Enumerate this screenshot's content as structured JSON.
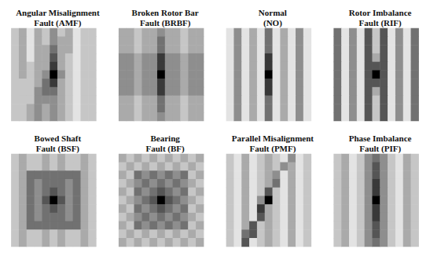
{
  "chart_data": [
    {
      "type": "heatmap",
      "title": "Angular Misalignment Fault (AMF)",
      "cell_range": [
        0,
        9
      ],
      "tick_labels": false,
      "cells": [
        [
          2,
          3,
          1,
          3,
          2,
          4,
          2,
          3,
          1,
          2,
          2
        ],
        [
          2,
          3,
          1,
          3,
          2,
          4,
          3,
          3,
          1,
          2,
          2
        ],
        [
          2,
          3,
          1,
          3,
          3,
          5,
          3,
          3,
          1,
          2,
          2
        ],
        [
          2,
          3,
          1,
          3,
          3,
          6,
          3,
          2,
          1,
          2,
          2
        ],
        [
          2,
          3,
          2,
          3,
          3,
          7,
          3,
          2,
          1,
          2,
          2
        ],
        [
          2,
          3,
          2,
          3,
          4,
          9,
          4,
          2,
          1,
          2,
          2
        ],
        [
          2,
          2,
          2,
          3,
          5,
          7,
          3,
          2,
          1,
          2,
          2
        ],
        [
          2,
          2,
          2,
          4,
          5,
          5,
          3,
          2,
          1,
          2,
          2
        ],
        [
          2,
          2,
          2,
          4,
          4,
          4,
          3,
          2,
          1,
          2,
          2
        ],
        [
          2,
          2,
          3,
          4,
          3,
          4,
          3,
          2,
          1,
          2,
          2
        ],
        [
          2,
          2,
          3,
          4,
          3,
          4,
          3,
          2,
          1,
          2,
          2
        ]
      ]
    },
    {
      "type": "heatmap",
      "title": "Broken Rotor Bar Fault (BRBF)",
      "cell_range": [
        0,
        9
      ],
      "tick_labels": false,
      "cells": [
        [
          3,
          3,
          2,
          3,
          3,
          4,
          3,
          3,
          2,
          3,
          3
        ],
        [
          3,
          3,
          2,
          3,
          3,
          5,
          3,
          3,
          2,
          3,
          3
        ],
        [
          3,
          3,
          2,
          3,
          3,
          5,
          3,
          3,
          2,
          3,
          3
        ],
        [
          4,
          4,
          3,
          4,
          4,
          7,
          4,
          4,
          3,
          4,
          4
        ],
        [
          4,
          4,
          3,
          4,
          4,
          7,
          4,
          4,
          3,
          4,
          4
        ],
        [
          4,
          4,
          3,
          4,
          4,
          9,
          4,
          4,
          3,
          4,
          4
        ],
        [
          4,
          4,
          3,
          4,
          4,
          7,
          4,
          4,
          3,
          4,
          4
        ],
        [
          4,
          4,
          3,
          4,
          4,
          7,
          4,
          4,
          3,
          4,
          4
        ],
        [
          3,
          3,
          2,
          3,
          3,
          5,
          3,
          3,
          2,
          3,
          3
        ],
        [
          3,
          3,
          2,
          3,
          3,
          5,
          3,
          3,
          2,
          3,
          3
        ],
        [
          3,
          3,
          2,
          3,
          3,
          4,
          3,
          3,
          2,
          3,
          3
        ]
      ]
    },
    {
      "type": "heatmap",
      "title": "Normal (NO)",
      "cell_range": [
        0,
        9
      ],
      "tick_labels": false,
      "cells": [
        [
          1,
          4,
          1,
          3,
          1,
          5,
          1,
          3,
          1,
          4,
          1
        ],
        [
          1,
          4,
          1,
          3,
          1,
          5,
          1,
          3,
          1,
          4,
          1
        ],
        [
          1,
          4,
          1,
          3,
          1,
          5,
          1,
          3,
          1,
          4,
          1
        ],
        [
          1,
          4,
          1,
          3,
          1,
          7,
          1,
          3,
          1,
          4,
          1
        ],
        [
          1,
          4,
          1,
          3,
          1,
          7,
          1,
          3,
          1,
          4,
          1
        ],
        [
          1,
          4,
          1,
          3,
          1,
          9,
          1,
          3,
          1,
          4,
          1
        ],
        [
          1,
          4,
          1,
          3,
          1,
          7,
          1,
          3,
          1,
          4,
          1
        ],
        [
          1,
          4,
          1,
          3,
          1,
          7,
          1,
          3,
          1,
          4,
          1
        ],
        [
          1,
          4,
          1,
          3,
          1,
          5,
          1,
          3,
          1,
          4,
          1
        ],
        [
          1,
          4,
          1,
          3,
          1,
          5,
          1,
          3,
          1,
          4,
          1
        ],
        [
          1,
          4,
          1,
          3,
          1,
          5,
          1,
          3,
          1,
          4,
          1
        ]
      ]
    },
    {
      "type": "heatmap",
      "title": "Rotor Imbalance Fault (RIF)",
      "cell_range": [
        0,
        9
      ],
      "tick_labels": false,
      "cells": [
        [
          5,
          1,
          4,
          1,
          6,
          2,
          6,
          1,
          4,
          1,
          5
        ],
        [
          5,
          1,
          4,
          1,
          6,
          2,
          6,
          1,
          4,
          1,
          5
        ],
        [
          5,
          1,
          4,
          1,
          6,
          2,
          6,
          1,
          4,
          1,
          5
        ],
        [
          5,
          1,
          4,
          1,
          6,
          3,
          6,
          1,
          4,
          1,
          5
        ],
        [
          5,
          1,
          4,
          1,
          6,
          6,
          6,
          1,
          4,
          1,
          5
        ],
        [
          5,
          1,
          4,
          1,
          6,
          9,
          6,
          1,
          4,
          1,
          5
        ],
        [
          5,
          1,
          4,
          1,
          6,
          6,
          6,
          1,
          4,
          1,
          5
        ],
        [
          5,
          1,
          4,
          1,
          6,
          3,
          6,
          1,
          4,
          1,
          5
        ],
        [
          5,
          1,
          4,
          1,
          6,
          2,
          6,
          1,
          4,
          1,
          5
        ],
        [
          5,
          1,
          4,
          1,
          6,
          2,
          6,
          1,
          4,
          1,
          5
        ],
        [
          5,
          1,
          4,
          1,
          6,
          2,
          6,
          1,
          4,
          1,
          5
        ]
      ]
    },
    {
      "type": "heatmap",
      "title": "Bowed Shaft Fault (BSF)",
      "cell_range": [
        0,
        9
      ],
      "tick_labels": false,
      "cells": [
        [
          2,
          3,
          2,
          2,
          3,
          2,
          3,
          2,
          2,
          3,
          2
        ],
        [
          2,
          3,
          2,
          2,
          3,
          2,
          3,
          2,
          2,
          3,
          2
        ],
        [
          2,
          3,
          5,
          5,
          5,
          5,
          5,
          5,
          5,
          3,
          2
        ],
        [
          2,
          3,
          5,
          4,
          5,
          5,
          5,
          4,
          5,
          3,
          2
        ],
        [
          2,
          3,
          5,
          4,
          5,
          6,
          5,
          4,
          5,
          3,
          2
        ],
        [
          2,
          3,
          5,
          4,
          6,
          9,
          6,
          4,
          5,
          3,
          2
        ],
        [
          2,
          3,
          5,
          4,
          5,
          6,
          5,
          4,
          5,
          3,
          2
        ],
        [
          2,
          3,
          5,
          4,
          5,
          5,
          5,
          4,
          5,
          3,
          2
        ],
        [
          2,
          3,
          5,
          5,
          5,
          5,
          5,
          5,
          5,
          3,
          2
        ],
        [
          2,
          3,
          2,
          2,
          3,
          2,
          3,
          2,
          2,
          3,
          2
        ],
        [
          2,
          3,
          2,
          2,
          3,
          2,
          3,
          2,
          2,
          3,
          2
        ]
      ]
    },
    {
      "type": "heatmap",
      "title": "Bearing Fault (BF)",
      "cell_range": [
        0,
        9
      ],
      "tick_labels": false,
      "cells": [
        [
          3,
          2,
          3,
          2,
          3,
          2,
          3,
          2,
          3,
          2,
          3
        ],
        [
          2,
          3,
          2,
          3,
          2,
          3,
          2,
          3,
          2,
          3,
          2
        ],
        [
          3,
          2,
          5,
          4,
          5,
          4,
          5,
          4,
          5,
          2,
          3
        ],
        [
          2,
          3,
          4,
          5,
          4,
          5,
          4,
          5,
          4,
          3,
          2
        ],
        [
          3,
          2,
          5,
          4,
          5,
          6,
          5,
          4,
          5,
          2,
          3
        ],
        [
          2,
          3,
          4,
          5,
          6,
          9,
          6,
          5,
          4,
          3,
          2
        ],
        [
          3,
          2,
          5,
          4,
          5,
          6,
          5,
          4,
          5,
          2,
          3
        ],
        [
          2,
          3,
          4,
          5,
          4,
          5,
          4,
          5,
          4,
          3,
          2
        ],
        [
          3,
          2,
          5,
          4,
          5,
          4,
          5,
          4,
          5,
          2,
          3
        ],
        [
          2,
          3,
          2,
          3,
          2,
          3,
          2,
          3,
          2,
          3,
          2
        ],
        [
          3,
          2,
          3,
          2,
          3,
          2,
          3,
          2,
          3,
          2,
          3
        ]
      ]
    },
    {
      "type": "heatmap",
      "title": "Parallel Misalignment Fault (PMF)",
      "cell_range": [
        0,
        9
      ],
      "tick_labels": false,
      "cells": [
        [
          2,
          1,
          3,
          1,
          2,
          3,
          2,
          1,
          4,
          1,
          2
        ],
        [
          2,
          1,
          3,
          1,
          2,
          3,
          2,
          4,
          3,
          1,
          2
        ],
        [
          2,
          1,
          3,
          1,
          2,
          3,
          4,
          1,
          3,
          1,
          2
        ],
        [
          2,
          1,
          3,
          1,
          2,
          3,
          5,
          1,
          3,
          1,
          2
        ],
        [
          2,
          1,
          3,
          1,
          2,
          6,
          2,
          1,
          3,
          1,
          2
        ],
        [
          2,
          1,
          3,
          1,
          4,
          9,
          2,
          1,
          3,
          1,
          2
        ],
        [
          2,
          1,
          3,
          1,
          7,
          3,
          2,
          1,
          3,
          1,
          2
        ],
        [
          2,
          1,
          3,
          1,
          6,
          3,
          2,
          1,
          3,
          1,
          2
        ],
        [
          2,
          1,
          3,
          6,
          2,
          3,
          2,
          1,
          3,
          1,
          2
        ],
        [
          2,
          1,
          5,
          6,
          2,
          3,
          2,
          1,
          3,
          1,
          2
        ],
        [
          2,
          1,
          6,
          1,
          2,
          3,
          2,
          1,
          3,
          1,
          2
        ]
      ]
    },
    {
      "type": "heatmap",
      "title": "Phase Imbalance Fault (PIF)",
      "cell_range": [
        0,
        9
      ],
      "tick_labels": false,
      "cells": [
        [
          2,
          3,
          1,
          2,
          4,
          5,
          4,
          2,
          1,
          3,
          2
        ],
        [
          2,
          3,
          1,
          2,
          4,
          6,
          4,
          2,
          1,
          3,
          2
        ],
        [
          2,
          3,
          1,
          2,
          4,
          6,
          4,
          2,
          1,
          3,
          2
        ],
        [
          2,
          3,
          1,
          2,
          4,
          7,
          4,
          2,
          1,
          3,
          2
        ],
        [
          2,
          3,
          1,
          2,
          4,
          7,
          4,
          2,
          1,
          3,
          2
        ],
        [
          2,
          3,
          1,
          2,
          4,
          9,
          4,
          2,
          1,
          3,
          2
        ],
        [
          2,
          3,
          1,
          2,
          4,
          7,
          4,
          2,
          1,
          3,
          2
        ],
        [
          2,
          3,
          1,
          2,
          4,
          7,
          4,
          2,
          1,
          3,
          2
        ],
        [
          2,
          3,
          1,
          2,
          4,
          6,
          4,
          2,
          1,
          3,
          2
        ],
        [
          2,
          3,
          1,
          2,
          4,
          6,
          4,
          2,
          1,
          3,
          2
        ],
        [
          2,
          3,
          1,
          2,
          4,
          5,
          4,
          2,
          1,
          3,
          2
        ]
      ]
    }
  ]
}
